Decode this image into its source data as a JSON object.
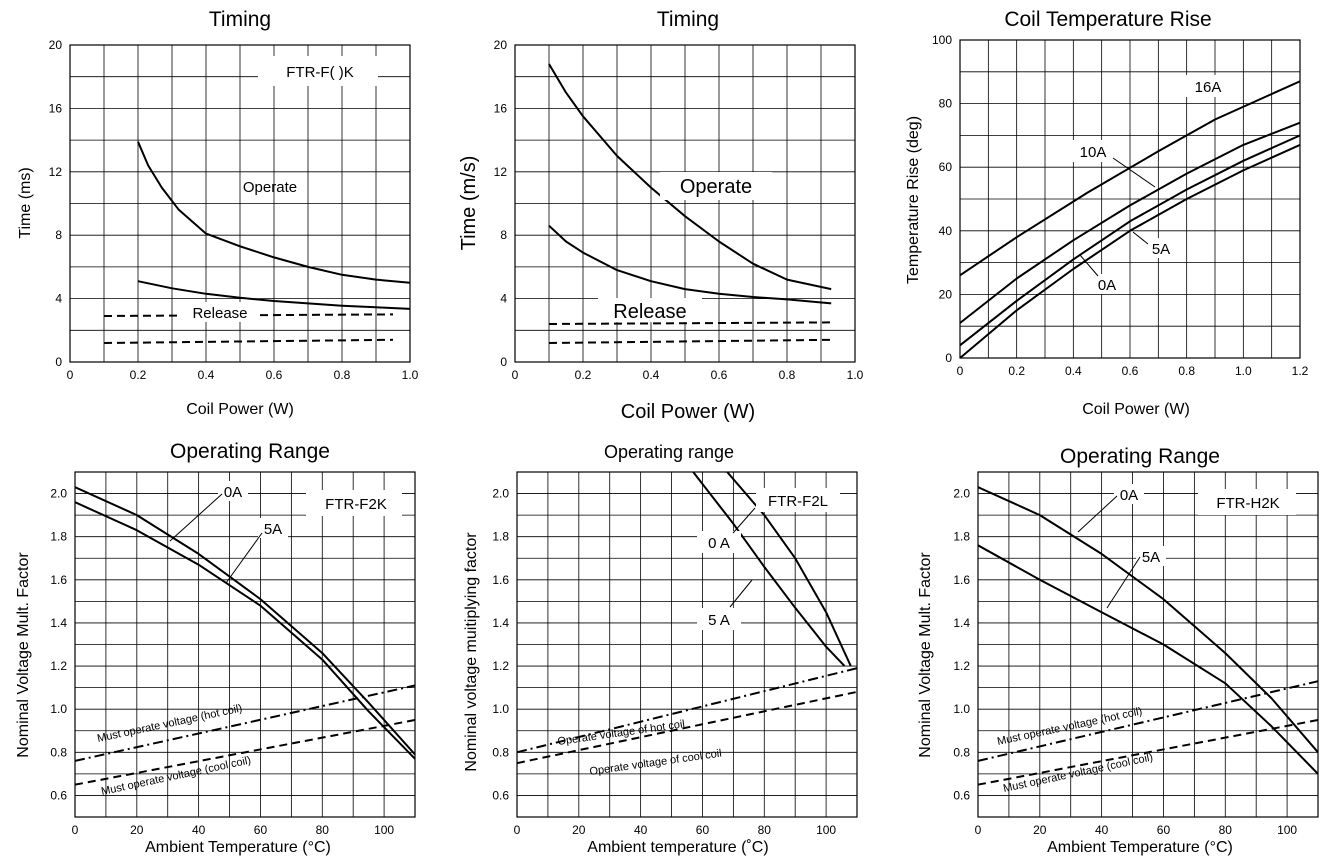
{
  "chart_data": [
    {
      "type": "line",
      "title": "Timing",
      "xlabel": "Coil Power (W)",
      "ylabel": "Time (ms)",
      "xlim": [
        0,
        1.0
      ],
      "ylim": [
        0,
        20
      ],
      "x_ticks": [
        "0",
        "0.2",
        "0.4",
        "0.6",
        "0.8",
        "1.0"
      ],
      "y_ticks": [
        "0",
        "4",
        "8",
        "12",
        "16",
        "20"
      ],
      "grid": true,
      "series": [
        {
          "name": "Operate",
          "style": "solid",
          "x": [
            0.2,
            0.23,
            0.27,
            0.32,
            0.4,
            0.5,
            0.6,
            0.7,
            0.8,
            0.9,
            1.0
          ],
          "y": [
            13.9,
            12.4,
            11.0,
            9.6,
            8.1,
            7.3,
            6.6,
            6.0,
            5.5,
            5.2,
            5.0
          ]
        },
        {
          "style": "solid",
          "x": [
            0.2,
            0.3,
            0.4,
            0.5,
            0.6,
            0.7,
            0.8,
            0.9,
            1.0
          ],
          "y": [
            5.1,
            4.65,
            4.3,
            4.05,
            3.85,
            3.7,
            3.55,
            3.45,
            3.35
          ]
        },
        {
          "name": "Release",
          "style": "dashed",
          "x": [
            0.1,
            0.95
          ],
          "y": [
            2.9,
            3.0
          ]
        },
        {
          "style": "dashed",
          "x": [
            0.1,
            0.95
          ],
          "y": [
            1.2,
            1.4
          ]
        }
      ],
      "annotations": [
        "FTR-F( )K",
        "Operate",
        "Release"
      ]
    },
    {
      "type": "line",
      "title": "Timing",
      "xlabel": "Coil Power (W)",
      "ylabel": "Time (m/s)",
      "xlim": [
        0,
        1.0
      ],
      "ylim": [
        0,
        20
      ],
      "x_ticks": [
        "0",
        "0.2",
        "0.4",
        "0.6",
        "0.8",
        "1.0"
      ],
      "y_ticks": [
        "0",
        "4",
        "8",
        "12",
        "16",
        "20"
      ],
      "grid": true,
      "series": [
        {
          "name": "Operate",
          "style": "solid",
          "x": [
            0.1,
            0.15,
            0.2,
            0.3,
            0.4,
            0.5,
            0.6,
            0.7,
            0.8,
            0.93
          ],
          "y": [
            18.8,
            17.0,
            15.5,
            13.0,
            11.0,
            9.2,
            7.6,
            6.2,
            5.2,
            4.6
          ]
        },
        {
          "style": "solid",
          "x": [
            0.1,
            0.15,
            0.2,
            0.3,
            0.4,
            0.5,
            0.6,
            0.7,
            0.8,
            0.93
          ],
          "y": [
            8.6,
            7.6,
            6.9,
            5.8,
            5.1,
            4.6,
            4.3,
            4.1,
            3.95,
            3.7
          ]
        },
        {
          "name": "Release",
          "style": "dashed",
          "x": [
            0.1,
            0.93
          ],
          "y": [
            2.4,
            2.5
          ]
        },
        {
          "style": "dashed",
          "x": [
            0.1,
            0.93
          ],
          "y": [
            1.2,
            1.4
          ]
        }
      ],
      "annotations": [
        "Operate",
        "Release"
      ]
    },
    {
      "type": "line",
      "title": "Coil Temperature Rise",
      "xlabel": "Coil Power (W)",
      "ylabel": "Temperature Rise (deg)",
      "xlim": [
        0,
        1.2
      ],
      "ylim": [
        0,
        100
      ],
      "x_ticks": [
        "0",
        "0.2",
        "0.4",
        "0.6",
        "0.8",
        "1.0",
        "1.2"
      ],
      "y_ticks": [
        "0",
        "20",
        "40",
        "60",
        "80",
        "100"
      ],
      "grid": true,
      "series": [
        {
          "name": "16A",
          "style": "solid",
          "x": [
            0,
            0.2,
            0.45,
            0.7,
            0.9,
            1.2
          ],
          "y": [
            26,
            38,
            52,
            65,
            75,
            87
          ]
        },
        {
          "name": "10A",
          "style": "solid",
          "x": [
            0,
            0.2,
            0.4,
            0.6,
            0.8,
            1.0,
            1.2
          ],
          "y": [
            11,
            25,
            37,
            48,
            58,
            67,
            74
          ]
        },
        {
          "name": "5A",
          "style": "solid",
          "x": [
            0,
            0.2,
            0.4,
            0.6,
            0.8,
            1.0,
            1.2
          ],
          "y": [
            4,
            18,
            31,
            43,
            53,
            62,
            70
          ]
        },
        {
          "name": "0A",
          "style": "solid",
          "x": [
            0,
            0.2,
            0.4,
            0.6,
            0.8,
            1.0,
            1.2
          ],
          "y": [
            0,
            15,
            28,
            40,
            50,
            59,
            67
          ]
        }
      ],
      "annotations": [
        "16A",
        "10A",
        "5A",
        "0A"
      ]
    },
    {
      "type": "line",
      "title": "Operating Range",
      "xlabel": "Ambient Temperature (°C)",
      "ylabel": "Nominal Voltage Mult. Factor",
      "xlim": [
        0,
        110
      ],
      "ylim": [
        0.5,
        2.1
      ],
      "x_ticks": [
        "0",
        "20",
        "40",
        "60",
        "80",
        "100"
      ],
      "y_ticks": [
        "0.6",
        "0.8",
        "1.0",
        "1.2",
        "1.4",
        "1.6",
        "1.8",
        "2.0"
      ],
      "grid": true,
      "series": [
        {
          "name": "0A",
          "style": "solid",
          "x": [
            0,
            20,
            40,
            60,
            80,
            95,
            110
          ],
          "y": [
            2.03,
            1.9,
            1.72,
            1.51,
            1.26,
            1.03,
            0.79
          ]
        },
        {
          "name": "5A",
          "style": "solid",
          "x": [
            0,
            20,
            40,
            60,
            80,
            95,
            110
          ],
          "y": [
            1.96,
            1.83,
            1.67,
            1.48,
            1.23,
            0.99,
            0.77
          ]
        },
        {
          "name": "Must operate voltage (hot coil)",
          "style": "dash-dot",
          "x": [
            0,
            110
          ],
          "y": [
            0.76,
            1.11
          ]
        },
        {
          "name": "Must operate voltage (cool coil)",
          "style": "dashed",
          "x": [
            0,
            110
          ],
          "y": [
            0.65,
            0.95
          ]
        }
      ],
      "annotations": [
        "FTR-F2K",
        "0A",
        "5A",
        "Must operate voltage (hot coil)",
        "Must operate voltage (cool coil)"
      ]
    },
    {
      "type": "line",
      "title": "Operating range",
      "xlabel": "Ambient temperature (˚C)",
      "ylabel": "Nominal voltage muitiplying factor",
      "xlim": [
        0,
        110
      ],
      "ylim": [
        0.5,
        2.1
      ],
      "x_ticks": [
        "0",
        "20",
        "40",
        "60",
        "80",
        "100"
      ],
      "y_ticks": [
        "0.6",
        "0.8",
        "1.0",
        "1.2",
        "1.4",
        "1.6",
        "1.8",
        "2.0"
      ],
      "grid": true,
      "series": [
        {
          "name": "0 A",
          "style": "solid",
          "x": [
            68,
            80,
            90,
            100,
            108
          ],
          "y": [
            2.1,
            1.9,
            1.7,
            1.45,
            1.2
          ]
        },
        {
          "name": "5 A",
          "style": "solid",
          "x": [
            57,
            70,
            80,
            90,
            100,
            106
          ],
          "y": [
            2.1,
            1.86,
            1.66,
            1.47,
            1.29,
            1.2
          ]
        },
        {
          "name": "Operate voltage of hot coil",
          "style": "dash-dot",
          "x": [
            0,
            110
          ],
          "y": [
            0.8,
            1.19
          ]
        },
        {
          "name": "Operate voltage of cool coil",
          "style": "dashed",
          "x": [
            0,
            110
          ],
          "y": [
            0.75,
            1.08
          ]
        }
      ],
      "annotations": [
        "FTR-F2L",
        "0 A",
        "5 A",
        "Operate voltage of hot coil",
        "Operate voltage of cool coil"
      ]
    },
    {
      "type": "line",
      "title": "Operating Range",
      "xlabel": "Ambient Temperature (°C)",
      "ylabel": "Nominal Voltage Mult. Factor",
      "xlim": [
        0,
        110
      ],
      "ylim": [
        0.5,
        2.1
      ],
      "x_ticks": [
        "0",
        "20",
        "40",
        "60",
        "80",
        "100"
      ],
      "y_ticks": [
        "0.6",
        "0.8",
        "1.0",
        "1.2",
        "1.4",
        "1.6",
        "1.8",
        "2.0"
      ],
      "grid": true,
      "series": [
        {
          "name": "0A",
          "style": "solid",
          "x": [
            0,
            20,
            40,
            60,
            80,
            95,
            110
          ],
          "y": [
            2.03,
            1.9,
            1.72,
            1.51,
            1.26,
            1.05,
            0.8
          ]
        },
        {
          "name": "5A",
          "style": "solid",
          "x": [
            0,
            20,
            40,
            60,
            80,
            95,
            110
          ],
          "y": [
            1.76,
            1.6,
            1.45,
            1.3,
            1.12,
            0.92,
            0.7
          ]
        },
        {
          "name": "Must operate voltage (hot coil)",
          "style": "dash-dot",
          "x": [
            0,
            110
          ],
          "y": [
            0.76,
            1.13
          ]
        },
        {
          "name": "Must operate voltage (cool coil)",
          "style": "dashed",
          "x": [
            0,
            110
          ],
          "y": [
            0.65,
            0.95
          ]
        }
      ],
      "annotations": [
        "FTR-H2K",
        "0A",
        "5A",
        "Must operate voltage (hot coil)",
        "Must operate voltage (cool coil)"
      ]
    }
  ]
}
